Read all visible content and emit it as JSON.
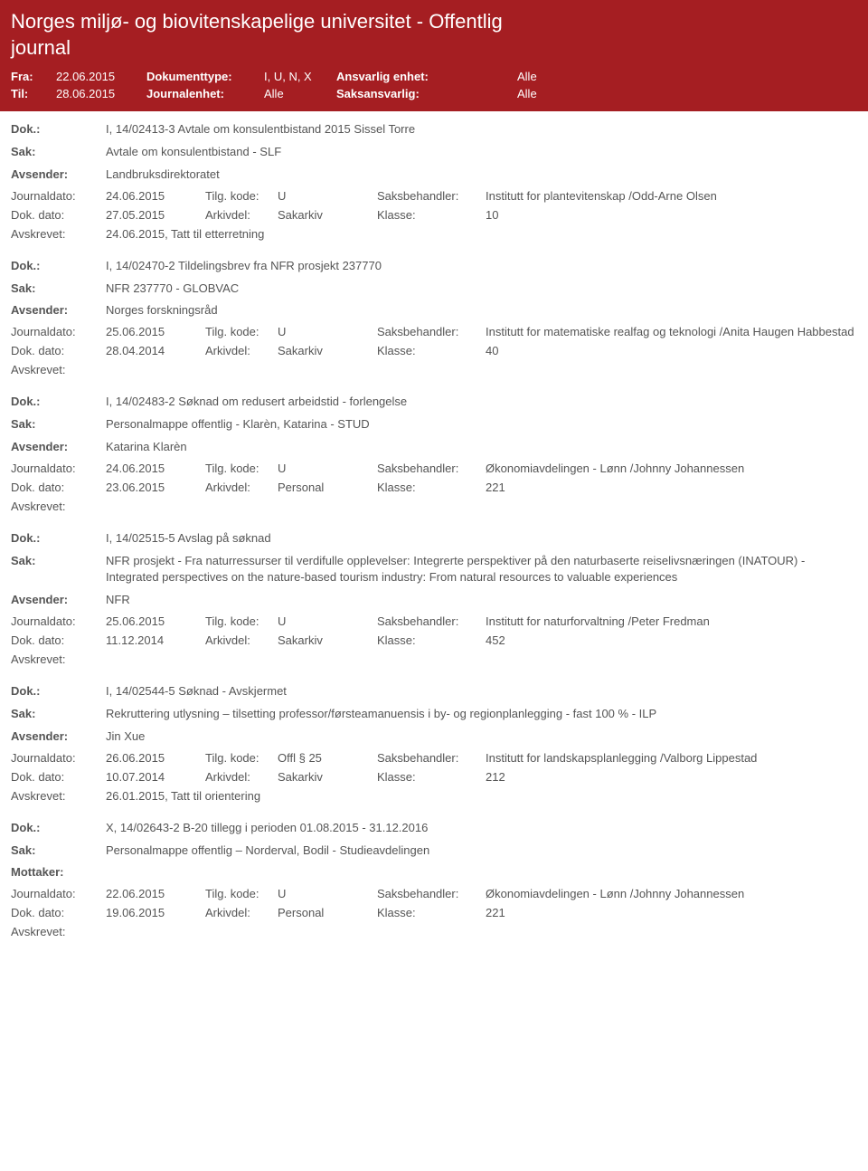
{
  "header": {
    "title": "Norges miljø- og biovitenskapelige universitet - Offentlig journal",
    "fra_label": "Fra:",
    "fra": "22.06.2015",
    "til_label": "Til:",
    "til": "28.06.2015",
    "doktype_label": "Dokumenttype:",
    "doktype": "I, U, N, X",
    "journalenhet_label": "Journalenhet:",
    "journalenhet": "Alle",
    "ansvarlig_label": "Ansvarlig enhet:",
    "ansvarlig": "Alle",
    "saksansvarlig_label": "Saksansvarlig:",
    "saksansvarlig": "Alle"
  },
  "labels": {
    "dok": "Dok.:",
    "sak": "Sak:",
    "avsender": "Avsender:",
    "mottaker": "Mottaker:",
    "journaldato": "Journaldato:",
    "dokdato": "Dok. dato:",
    "tilgkode": "Tilg. kode:",
    "arkivdel": "Arkivdel:",
    "sb": "Saksbehandler:",
    "klasse": "Klasse:",
    "avskrevet": "Avskrevet:"
  },
  "entries": [
    {
      "dok": "I, 14/02413-3 Avtale om konsulentbistand 2015 Sissel Torre",
      "sak": "Avtale om konsulentbistand - SLF",
      "party_label": "Avsender:",
      "party": "Landbruksdirektoratet",
      "jd": "24.06.2015",
      "tk": "U",
      "sb": "Institutt for plantevitenskap /Odd-Arne Olsen",
      "dd": "27.05.2015",
      "ad": "Sakarkiv",
      "klasse": "10",
      "avskr": "24.06.2015, Tatt til etterretning"
    },
    {
      "dok": "I, 14/02470-2 Tildelingsbrev fra NFR prosjekt 237770",
      "sak": "NFR 237770 - GLOBVAC",
      "party_label": "Avsender:",
      "party": "Norges forskningsråd",
      "jd": "25.06.2015",
      "tk": "U",
      "sb": "Institutt for matematiske realfag og teknologi /Anita Haugen Habbestad",
      "dd": "28.04.2014",
      "ad": "Sakarkiv",
      "klasse": "40",
      "avskr": ""
    },
    {
      "dok": "I, 14/02483-2 Søknad om redusert arbeidstid - forlengelse",
      "sak": "Personalmappe offentlig - Klarèn, Katarina - STUD",
      "party_label": "Avsender:",
      "party": "Katarina Klarèn",
      "jd": "24.06.2015",
      "tk": "U",
      "sb": "Økonomiavdelingen - Lønn /Johnny Johannessen",
      "dd": "23.06.2015",
      "ad": "Personal",
      "klasse": "221",
      "avskr": ""
    },
    {
      "dok": "I, 14/02515-5 Avslag på søknad",
      "sak": "NFR prosjekt - Fra naturressurser til verdifulle opplevelser: Integrerte perspektiver på den naturbaserte reiselivsnæringen (INATOUR) - Integrated perspectives on the nature-based tourism industry: From natural resources to valuable experiences",
      "party_label": "Avsender:",
      "party": "NFR",
      "jd": "25.06.2015",
      "tk": "U",
      "sb": "Institutt for naturforvaltning /Peter Fredman",
      "dd": "11.12.2014",
      "ad": "Sakarkiv",
      "klasse": "452",
      "avskr": ""
    },
    {
      "dok": "I, 14/02544-5 Søknad - Avskjermet",
      "sak": "Rekruttering utlysning – tilsetting professor/førsteamanuensis i by- og regionplanlegging - fast 100 % - ILP",
      "party_label": "Avsender:",
      "party": "Jin Xue",
      "jd": "26.06.2015",
      "tk": "Offl § 25",
      "sb": "Institutt for landskapsplanlegging /Valborg Lippestad",
      "dd": "10.07.2014",
      "ad": "Sakarkiv",
      "klasse": "212",
      "avskr": "26.01.2015, Tatt til orientering"
    },
    {
      "dok": "X, 14/02643-2 B-20 tillegg i perioden 01.08.2015 - 31.12.2016",
      "sak": "Personalmappe offentlig – Norderval, Bodil - Studieavdelingen",
      "party_label": "Mottaker:",
      "party": "",
      "jd": "22.06.2015",
      "tk": "U",
      "sb": "Økonomiavdelingen - Lønn /Johnny Johannessen",
      "dd": "19.06.2015",
      "ad": "Personal",
      "klasse": "221",
      "avskr": ""
    }
  ]
}
